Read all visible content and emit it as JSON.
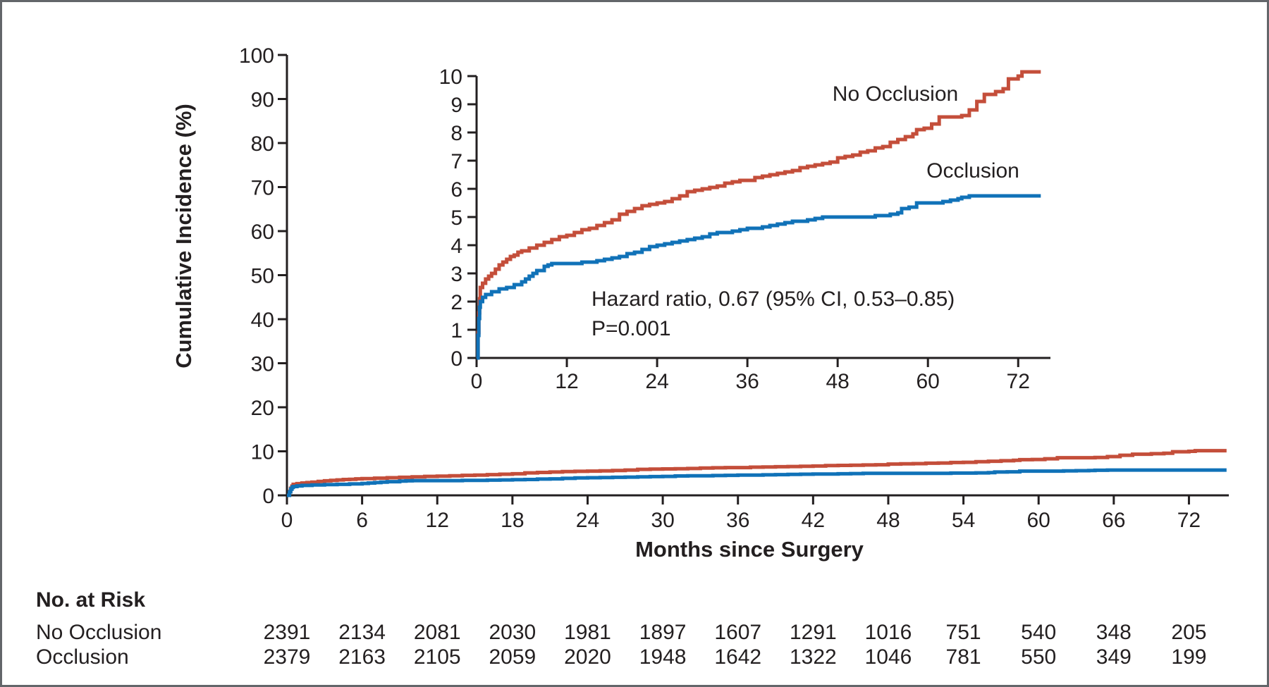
{
  "figure": {
    "y_axis_title": "Cumulative Incidence (%)",
    "x_axis_title": "Months since Surgery",
    "annotation": {
      "line1": "Hazard ratio, 0.67 (95% CI, 0.53–0.85)",
      "line2": "P=0.001"
    },
    "series_labels": {
      "no_occlusion": "No Occlusion",
      "occlusion": "Occlusion"
    },
    "risk_table": {
      "header": "No. at Risk",
      "months": [
        0,
        6,
        12,
        18,
        24,
        30,
        36,
        42,
        48,
        54,
        60,
        66,
        72
      ],
      "rows": [
        {
          "label": "No Occlusion",
          "counts": [
            2391,
            2134,
            2081,
            2030,
            1981,
            1897,
            1607,
            1291,
            1016,
            751,
            540,
            348,
            205
          ]
        },
        {
          "label": "Occlusion",
          "counts": [
            2379,
            2163,
            2105,
            2059,
            2020,
            1948,
            1642,
            1322,
            1046,
            781,
            550,
            349,
            199
          ]
        }
      ]
    },
    "colors": {
      "no_occlusion": "#c44e3a",
      "occlusion": "#1072b8",
      "axis": "#231f20",
      "border": "#63666a"
    }
  },
  "chart_data": {
    "type": "line",
    "title": "",
    "xlabel": "Months since Surgery",
    "ylabel": "Cumulative Incidence (%)",
    "legend": [
      "No Occlusion",
      "Occlusion"
    ],
    "legend_position": "inline-labels",
    "grid": false,
    "annotation": [
      "Hazard ratio, 0.67 (95% CI, 0.53–0.85)",
      "P=0.001"
    ],
    "main_axis": {
      "xlim": [
        0,
        75
      ],
      "ylim": [
        0,
        100
      ],
      "x_ticks": [
        0,
        6,
        12,
        18,
        24,
        30,
        36,
        42,
        48,
        54,
        60,
        66,
        72
      ],
      "y_ticks": [
        0,
        10,
        20,
        30,
        40,
        50,
        60,
        70,
        80,
        90,
        100
      ]
    },
    "inset_axis": {
      "xlim": [
        0,
        76
      ],
      "ylim": [
        0,
        10
      ],
      "x_ticks": [
        0,
        12,
        24,
        36,
        48,
        60,
        72
      ],
      "y_ticks": [
        0,
        1,
        2,
        3,
        4,
        5,
        6,
        7,
        8,
        9,
        10
      ]
    },
    "series": [
      {
        "name": "No Occlusion",
        "color": "#c44e3a",
        "step_points": [
          [
            0,
            0
          ],
          [
            0.2,
            0.9
          ],
          [
            0.3,
            1.6
          ],
          [
            0.4,
            2.1
          ],
          [
            0.5,
            2.5
          ],
          [
            0.8,
            2.65
          ],
          [
            1.2,
            2.8
          ],
          [
            1.6,
            2.9
          ],
          [
            2,
            3.0
          ],
          [
            2.5,
            3.15
          ],
          [
            3,
            3.3
          ],
          [
            3.5,
            3.4
          ],
          [
            4,
            3.5
          ],
          [
            4.5,
            3.6
          ],
          [
            5,
            3.65
          ],
          [
            5.5,
            3.75
          ],
          [
            6,
            3.8
          ],
          [
            7,
            3.9
          ],
          [
            8,
            4.0
          ],
          [
            9,
            4.1
          ],
          [
            10,
            4.2
          ],
          [
            11,
            4.3
          ],
          [
            12,
            4.35
          ],
          [
            13,
            4.45
          ],
          [
            14,
            4.55
          ],
          [
            15,
            4.6
          ],
          [
            16,
            4.7
          ],
          [
            17,
            4.8
          ],
          [
            18,
            4.9
          ],
          [
            19,
            5.1
          ],
          [
            20,
            5.2
          ],
          [
            21,
            5.3
          ],
          [
            22,
            5.4
          ],
          [
            23,
            5.45
          ],
          [
            24,
            5.5
          ],
          [
            25,
            5.55
          ],
          [
            26,
            5.65
          ],
          [
            27,
            5.75
          ],
          [
            28,
            5.9
          ],
          [
            29,
            5.95
          ],
          [
            30,
            6.0
          ],
          [
            31,
            6.05
          ],
          [
            32,
            6.1
          ],
          [
            33,
            6.2
          ],
          [
            34,
            6.25
          ],
          [
            35,
            6.3
          ],
          [
            37,
            6.4
          ],
          [
            38,
            6.45
          ],
          [
            39,
            6.5
          ],
          [
            40,
            6.55
          ],
          [
            41,
            6.6
          ],
          [
            42,
            6.65
          ],
          [
            43,
            6.75
          ],
          [
            44,
            6.8
          ],
          [
            45,
            6.85
          ],
          [
            46,
            6.9
          ],
          [
            47,
            6.95
          ],
          [
            48,
            7.1
          ],
          [
            49,
            7.15
          ],
          [
            50,
            7.2
          ],
          [
            51,
            7.3
          ],
          [
            52,
            7.35
          ],
          [
            53,
            7.45
          ],
          [
            54,
            7.5
          ],
          [
            55,
            7.65
          ],
          [
            56,
            7.75
          ],
          [
            57,
            7.85
          ],
          [
            58,
            7.95
          ],
          [
            58.5,
            8.1
          ],
          [
            59.5,
            8.15
          ],
          [
            60.5,
            8.3
          ],
          [
            61.5,
            8.55
          ],
          [
            64.5,
            8.6
          ],
          [
            65.5,
            8.8
          ],
          [
            66.5,
            9.1
          ],
          [
            67.5,
            9.35
          ],
          [
            69,
            9.45
          ],
          [
            70,
            9.55
          ],
          [
            70.7,
            9.9
          ],
          [
            72,
            10.0
          ],
          [
            72.5,
            10.15
          ],
          [
            75,
            10.15
          ]
        ]
      },
      {
        "name": "Occlusion",
        "color": "#1072b8",
        "step_points": [
          [
            0,
            0
          ],
          [
            0.2,
            0.8
          ],
          [
            0.3,
            1.4
          ],
          [
            0.4,
            1.8
          ],
          [
            0.5,
            2.0
          ],
          [
            0.8,
            2.15
          ],
          [
            1.2,
            2.25
          ],
          [
            2,
            2.35
          ],
          [
            3,
            2.45
          ],
          [
            4,
            2.5
          ],
          [
            5,
            2.6
          ],
          [
            6,
            2.7
          ],
          [
            6.5,
            2.8
          ],
          [
            7,
            2.9
          ],
          [
            7.5,
            3.0
          ],
          [
            8,
            3.1
          ],
          [
            9,
            3.25
          ],
          [
            9.5,
            3.3
          ],
          [
            10,
            3.35
          ],
          [
            14,
            3.4
          ],
          [
            16,
            3.45
          ],
          [
            17,
            3.5
          ],
          [
            18,
            3.55
          ],
          [
            19,
            3.6
          ],
          [
            20,
            3.7
          ],
          [
            21,
            3.75
          ],
          [
            22,
            3.85
          ],
          [
            23,
            3.95
          ],
          [
            24,
            4.0
          ],
          [
            25,
            4.05
          ],
          [
            26,
            4.1
          ],
          [
            27,
            4.15
          ],
          [
            28,
            4.2
          ],
          [
            29,
            4.25
          ],
          [
            30,
            4.3
          ],
          [
            31,
            4.4
          ],
          [
            32,
            4.45
          ],
          [
            34,
            4.5
          ],
          [
            35,
            4.55
          ],
          [
            36,
            4.6
          ],
          [
            38,
            4.65
          ],
          [
            39,
            4.7
          ],
          [
            40,
            4.75
          ],
          [
            41,
            4.8
          ],
          [
            42,
            4.85
          ],
          [
            44,
            4.9
          ],
          [
            45,
            4.95
          ],
          [
            46,
            5.0
          ],
          [
            53,
            5.05
          ],
          [
            55,
            5.1
          ],
          [
            56,
            5.15
          ],
          [
            56.5,
            5.3
          ],
          [
            57.5,
            5.35
          ],
          [
            58.5,
            5.5
          ],
          [
            62,
            5.55
          ],
          [
            63,
            5.6
          ],
          [
            64,
            5.65
          ],
          [
            64.5,
            5.7
          ],
          [
            65.5,
            5.75
          ],
          [
            75,
            5.75
          ]
        ]
      }
    ]
  }
}
